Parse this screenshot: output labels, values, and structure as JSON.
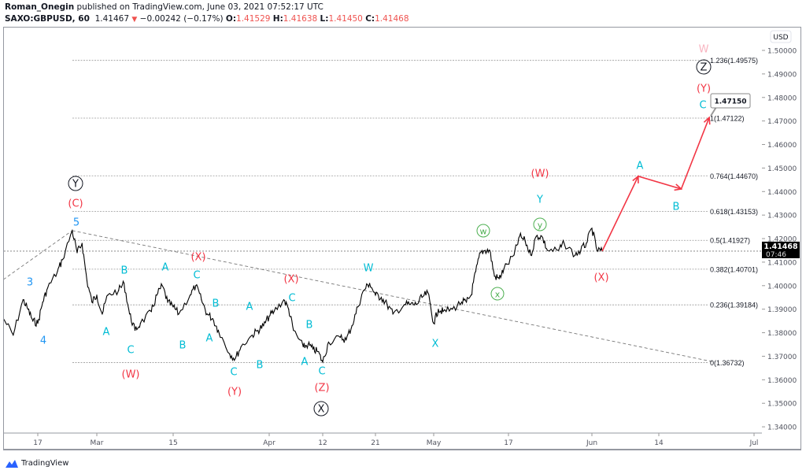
{
  "header": {
    "author": "Roman_Onegin",
    "published": "published on TradingView.com, June 03, 2021 07:52:17 UTC",
    "symbol": "SAXO:GBPUSD, 60",
    "last": "1.41467",
    "change": "−0.00242 (−0.17%)",
    "o_label": "O:",
    "o": "1.41529",
    "h_label": "H:",
    "h": "1.41638",
    "l_label": "L:",
    "l": "1.41450",
    "c_label": "C:",
    "c": "1.41468"
  },
  "price_axis": {
    "currency": "USD",
    "ticks": [
      "1.50000",
      "1.49000",
      "1.48000",
      "1.47000",
      "1.46000",
      "1.45000",
      "1.44000",
      "1.43000",
      "1.42000",
      "1.41000",
      "1.40000",
      "1.39000",
      "1.38000",
      "1.37000",
      "1.36000",
      "1.35000",
      "1.34000"
    ],
    "current_price": "1.41468",
    "countdown": "07:46"
  },
  "time_axis": {
    "ticks": [
      "17",
      "Mar",
      "15",
      "Apr",
      "12",
      "21",
      "May",
      "17",
      "Jun",
      "14",
      "Jul"
    ]
  },
  "footer": {
    "brand": "TradingView"
  },
  "colors": {
    "up_down_red": "#ef5350",
    "projection": "#f23645",
    "cyan": "#00bcd4",
    "blue": "#2196f3",
    "green": "#4caf50",
    "pink": "#f8b4c0",
    "price": "#000000"
  },
  "chart_data": {
    "type": "line",
    "title": "SAXO:GBPUSD, 60",
    "ylim": [
      1.335,
      1.51
    ],
    "xlim": [
      "2021-02-10",
      "2021-07-02"
    ],
    "grid": false,
    "price_series": [
      [
        "2021-02-10",
        1.386
      ],
      [
        "2021-02-12",
        1.379
      ],
      [
        "2021-02-14",
        1.394
      ],
      [
        "2021-02-15",
        1.39
      ],
      [
        "2021-02-16",
        1.385
      ],
      [
        "2021-02-17",
        1.384
      ],
      [
        "2021-02-18",
        1.393
      ],
      [
        "2021-02-19",
        1.399
      ],
      [
        "2021-02-21",
        1.406
      ],
      [
        "2021-02-22",
        1.411
      ],
      [
        "2021-02-24",
        1.4234
      ],
      [
        "2021-02-25",
        1.414
      ],
      [
        "2021-02-26",
        1.418
      ],
      [
        "2021-02-27",
        1.402
      ],
      [
        "2021-02-28",
        1.393
      ],
      [
        "2021-03-01",
        1.396
      ],
      [
        "2021-03-02",
        1.388
      ],
      [
        "2021-03-03",
        1.396
      ],
      [
        "2021-03-05",
        1.398
      ],
      [
        "2021-03-06",
        1.401
      ],
      [
        "2021-03-07",
        1.388
      ],
      [
        "2021-03-08",
        1.381
      ],
      [
        "2021-03-09",
        1.384
      ],
      [
        "2021-03-11",
        1.389
      ],
      [
        "2021-03-12",
        1.396
      ],
      [
        "2021-03-13",
        1.4
      ],
      [
        "2021-03-14",
        1.393
      ],
      [
        "2021-03-15",
        1.391
      ],
      [
        "2021-03-16",
        1.388
      ],
      [
        "2021-03-18",
        1.396
      ],
      [
        "2021-03-19",
        1.4
      ],
      [
        "2021-03-20",
        1.394
      ],
      [
        "2021-03-21",
        1.388
      ],
      [
        "2021-03-22",
        1.386
      ],
      [
        "2021-03-23",
        1.381
      ],
      [
        "2021-03-25",
        1.371
      ],
      [
        "2021-03-26",
        1.369
      ],
      [
        "2021-03-27",
        1.374
      ],
      [
        "2021-03-29",
        1.379
      ],
      [
        "2021-03-30",
        1.381
      ],
      [
        "2021-03-31",
        1.383
      ],
      [
        "2021-04-01",
        1.387
      ],
      [
        "2021-04-02",
        1.389
      ],
      [
        "2021-04-04",
        1.394
      ],
      [
        "2021-04-05",
        1.39
      ],
      [
        "2021-04-06",
        1.381
      ],
      [
        "2021-04-08",
        1.374
      ],
      [
        "2021-04-09",
        1.375
      ],
      [
        "2021-04-10",
        1.373
      ],
      [
        "2021-04-11",
        1.372
      ],
      [
        "2021-04-12",
        1.3675
      ],
      [
        "2021-04-13",
        1.376
      ],
      [
        "2021-04-15",
        1.378
      ],
      [
        "2021-04-16",
        1.377
      ],
      [
        "2021-04-17",
        1.383
      ],
      [
        "2021-04-18",
        1.391
      ],
      [
        "2021-04-19",
        1.398
      ],
      [
        "2021-04-20",
        1.401
      ],
      [
        "2021-04-21",
        1.396
      ],
      [
        "2021-04-22",
        1.395
      ],
      [
        "2021-04-23",
        1.392
      ],
      [
        "2021-04-24",
        1.388
      ],
      [
        "2021-04-26",
        1.392
      ],
      [
        "2021-04-27",
        1.392
      ],
      [
        "2021-04-28",
        1.392
      ],
      [
        "2021-04-29",
        1.395
      ],
      [
        "2021-04-30",
        1.397
      ],
      [
        "2021-05-01",
        1.384
      ],
      [
        "2021-05-02",
        1.39
      ],
      [
        "2021-05-03",
        1.389
      ],
      [
        "2021-05-05",
        1.39
      ],
      [
        "2021-05-07",
        1.393
      ],
      [
        "2021-05-08",
        1.393
      ],
      [
        "2021-05-09",
        1.396
      ],
      [
        "2021-05-10",
        1.406
      ],
      [
        "2021-05-11",
        1.414
      ],
      [
        "2021-05-12",
        1.415
      ],
      [
        "2021-05-13",
        1.415
      ],
      [
        "2021-05-14",
        1.404
      ],
      [
        "2021-05-15",
        1.403
      ],
      [
        "2021-05-16",
        1.407
      ],
      [
        "2021-05-18",
        1.413
      ],
      [
        "2021-05-19",
        1.421
      ],
      [
        "2021-05-20",
        1.419
      ],
      [
        "2021-05-21",
        1.413
      ],
      [
        "2021-05-22",
        1.421
      ],
      [
        "2021-05-23",
        1.421
      ],
      [
        "2021-05-24",
        1.415
      ],
      [
        "2021-05-26",
        1.415
      ],
      [
        "2021-05-27",
        1.418
      ],
      [
        "2021-05-29",
        1.413
      ],
      [
        "2021-05-30",
        1.415
      ],
      [
        "2021-05-31",
        1.418
      ],
      [
        "2021-06-01",
        1.4244
      ],
      [
        "2021-06-02",
        1.415
      ],
      [
        "2021-06-03",
        1.4147
      ]
    ],
    "projection": [
      [
        "2021-06-03",
        1.4147
      ],
      [
        "2021-06-10",
        1.4465
      ],
      [
        "2021-06-18",
        1.4411
      ],
      [
        "2021-06-23",
        1.4715
      ]
    ],
    "trendlines": [
      [
        [
          "2021-02-10",
          1.4026
        ],
        [
          "2021-02-24",
          1.4234
        ]
      ],
      [
        [
          "2021-02-24",
          1.4234
        ],
        [
          "2021-06-24",
          1.3675
        ]
      ]
    ],
    "fib_levels": [
      {
        "ratio": "1.236",
        "price": 1.49575,
        "label": "1.236(1.49575)"
      },
      {
        "ratio": "1",
        "price": 1.47122,
        "label": "1(1.47122)"
      },
      {
        "ratio": "0.764",
        "price": 1.4467,
        "label": "0.764(1.44670)"
      },
      {
        "ratio": "0.618",
        "price": 1.43153,
        "label": "0.618(1.43153)"
      },
      {
        "ratio": "0.5",
        "price": 1.41927,
        "label": "0.5(1.41927)"
      },
      {
        "ratio": "0.382",
        "price": 1.40701,
        "label": "0.382(1.40701)"
      },
      {
        "ratio": "0.236",
        "price": 1.39184,
        "label": "0.236(1.39184)"
      },
      {
        "ratio": "0",
        "price": 1.36732,
        "label": "0(1.36732)"
      }
    ],
    "target_callout": "1.47150",
    "wave_labels": [
      {
        "text": "5",
        "color": "blue"
      },
      {
        "text": "3",
        "color": "blue"
      },
      {
        "text": "4",
        "color": "blue"
      },
      {
        "text": "Y",
        "color": "circle"
      },
      {
        "text": "X",
        "color": "circle"
      },
      {
        "text": "Z",
        "color": "circle"
      },
      {
        "text": "(C)",
        "color": "red"
      },
      {
        "text": "(W)",
        "color": "red"
      },
      {
        "text": "(X)",
        "color": "red"
      },
      {
        "text": "(Y)",
        "color": "red"
      },
      {
        "text": "(X)",
        "color": "red"
      },
      {
        "text": "(Z)",
        "color": "red"
      },
      {
        "text": "(W)",
        "color": "red"
      },
      {
        "text": "(X)",
        "color": "red"
      },
      {
        "text": "(Y)",
        "color": "red"
      },
      {
        "text": "B",
        "color": "cyan"
      },
      {
        "text": "A",
        "color": "cyan"
      },
      {
        "text": "C",
        "color": "cyan"
      },
      {
        "text": "A",
        "color": "cyan"
      },
      {
        "text": "B",
        "color": "cyan"
      },
      {
        "text": "C",
        "color": "cyan"
      },
      {
        "text": "B",
        "color": "cyan"
      },
      {
        "text": "A",
        "color": "cyan"
      },
      {
        "text": "C",
        "color": "cyan"
      },
      {
        "text": "A",
        "color": "cyan"
      },
      {
        "text": "B",
        "color": "cyan"
      },
      {
        "text": "C",
        "color": "cyan"
      },
      {
        "text": "B",
        "color": "cyan"
      },
      {
        "text": "A",
        "color": "cyan"
      },
      {
        "text": "C",
        "color": "cyan"
      },
      {
        "text": "W",
        "color": "cyan"
      },
      {
        "text": "X",
        "color": "cyan"
      },
      {
        "text": "Y",
        "color": "cyan"
      },
      {
        "text": "A",
        "color": "cyan"
      },
      {
        "text": "B",
        "color": "cyan"
      },
      {
        "text": "C",
        "color": "cyan"
      },
      {
        "text": "w",
        "color": "green"
      },
      {
        "text": "x",
        "color": "green"
      },
      {
        "text": "y",
        "color": "green"
      },
      {
        "text": "W",
        "color": "pink"
      }
    ]
  }
}
